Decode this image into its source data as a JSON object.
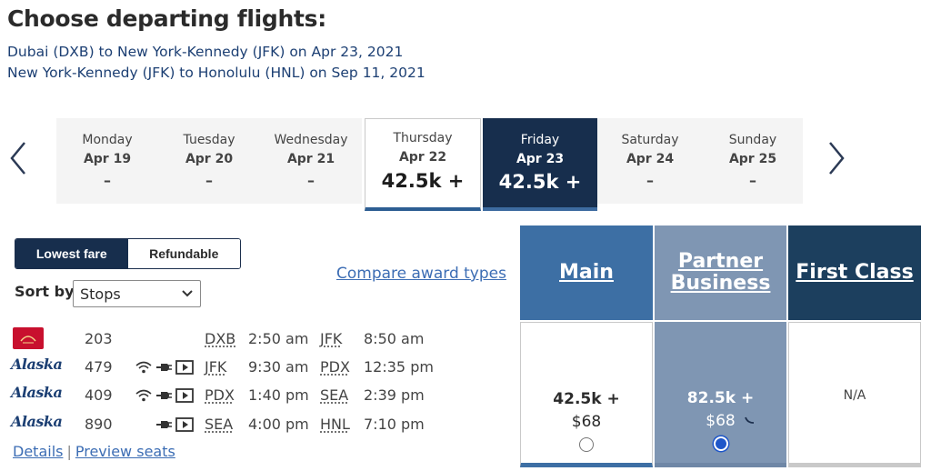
{
  "page": {
    "title": "Choose departing flights:",
    "routes": [
      "Dubai (DXB) to New York-Kennedy (JFK) on Apr 23, 2021",
      "New York-Kennedy (JFK) to Honolulu (HNL) on Sep 11, 2021"
    ]
  },
  "dates": [
    {
      "dow": "Monday",
      "date": "Apr 19",
      "price": "–"
    },
    {
      "dow": "Tuesday",
      "date": "Apr 20",
      "price": "–"
    },
    {
      "dow": "Wednesday",
      "date": "Apr 21",
      "price": "–"
    },
    {
      "dow": "Thursday",
      "date": "Apr 22",
      "price": "42.5k +"
    },
    {
      "dow": "Friday",
      "date": "Apr 23",
      "price": "42.5k +"
    },
    {
      "dow": "Saturday",
      "date": "Apr 24",
      "price": "–"
    },
    {
      "dow": "Sunday",
      "date": "Apr 25",
      "price": "–"
    }
  ],
  "filters": {
    "lowest_fare": "Lowest fare",
    "refundable": "Refundable",
    "sort_label": "Sort by",
    "sort_value": "Stops",
    "compare_link": "Compare award types"
  },
  "flights": [
    {
      "airline": "Emirates",
      "logo": "emirates-logo",
      "number": "203",
      "origin": "DXB",
      "depart": "2:50 am",
      "dest": "JFK",
      "arrive": "8:50 am",
      "amenities": []
    },
    {
      "airline": "Alaska",
      "logo": "Alaska",
      "number": "479",
      "origin": "JFK",
      "depart": "9:30 am",
      "dest": "PDX",
      "arrive": "12:35 pm",
      "amenities": [
        "wifi-icon",
        "power-icon",
        "entertainment-icon"
      ]
    },
    {
      "airline": "Alaska",
      "logo": "Alaska",
      "number": "409",
      "origin": "PDX",
      "depart": "1:40 pm",
      "dest": "SEA",
      "arrive": "2:39 pm",
      "amenities": [
        "wifi-icon",
        "power-icon",
        "entertainment-icon"
      ]
    },
    {
      "airline": "Alaska",
      "logo": "Alaska",
      "number": "890",
      "origin": "SEA",
      "depart": "4:00 pm",
      "dest": "HNL",
      "arrive": "7:10 pm",
      "amenities": [
        "power-icon",
        "entertainment-icon"
      ]
    }
  ],
  "links": {
    "details": "Details",
    "separator": "|",
    "preview_seats": "Preview seats"
  },
  "fares": {
    "main": {
      "header": "Main",
      "miles": "42.5k +",
      "tax": "$68",
      "selected": false
    },
    "partner": {
      "header_line1": "Partner",
      "header_line2": "Business",
      "miles": "82.5k +",
      "tax": "$68",
      "selected": true
    },
    "first": {
      "header": "First Class",
      "value": "N/A"
    }
  },
  "colors": {
    "navy": "#172e4d",
    "main_blue": "#3d6fa4",
    "partner_gray_blue": "#7f96b3",
    "first_dark": "#1c3f5e",
    "link_blue": "#3c6db4"
  }
}
